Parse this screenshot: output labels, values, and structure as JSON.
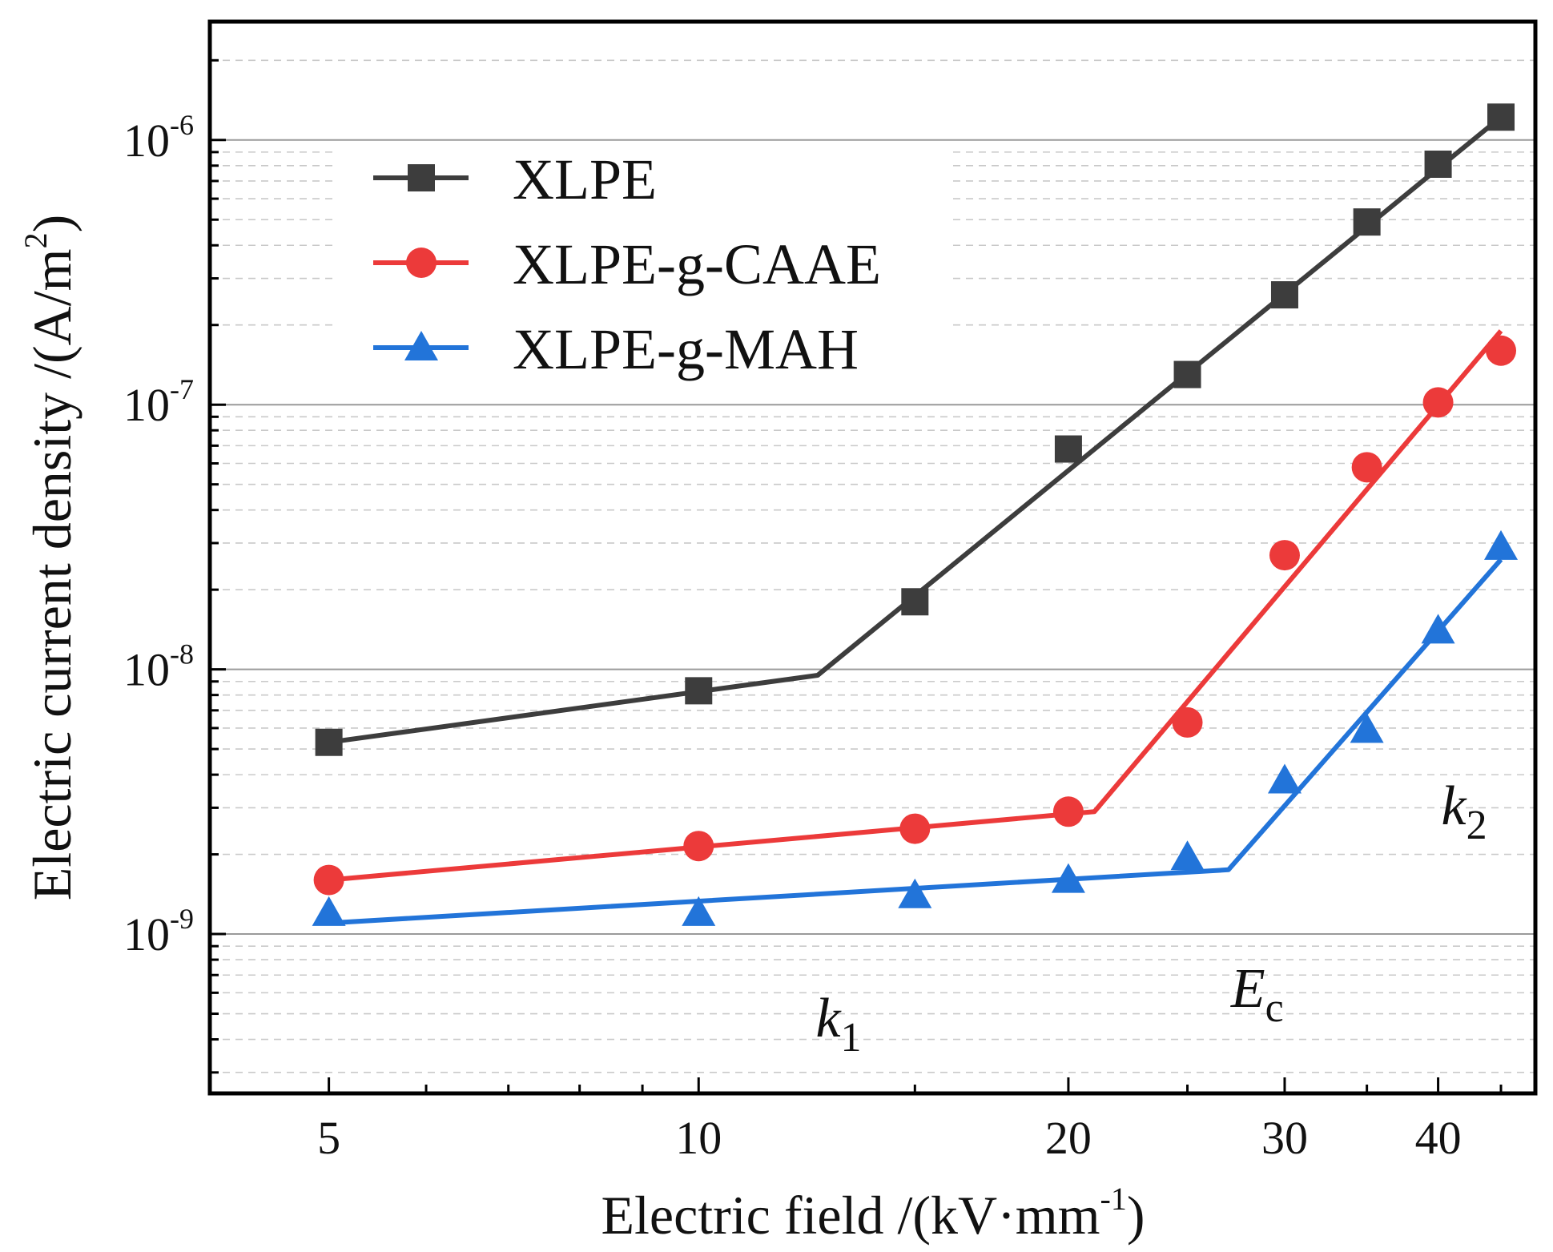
{
  "chart_data": {
    "type": "scatter",
    "x_scale": "log",
    "y_scale": "log",
    "xlabel": {
      "main": "Electric field /(kV·mm",
      "sup": "-1",
      "close": ")"
    },
    "ylabel": {
      "main": "Electric current density /(A/m",
      "sup": "2",
      "close": ")"
    },
    "xlim": [
      4.0,
      48.0
    ],
    "ylim": [
      2.5e-10,
      2.8e-06
    ],
    "x_ticks": [
      {
        "value": 5,
        "label": "5"
      },
      {
        "value": 10,
        "label": "10"
      },
      {
        "value": 20,
        "label": "20"
      },
      {
        "value": 30,
        "label": "30"
      },
      {
        "value": 40,
        "label": "40"
      }
    ],
    "x_minor_ticks": [
      6,
      7,
      8,
      9,
      15,
      25,
      35,
      45
    ],
    "y_ticks": [
      {
        "value": 1e-09,
        "base": "10",
        "exp": "-9"
      },
      {
        "value": 1e-08,
        "base": "10",
        "exp": "-8"
      },
      {
        "value": 1e-07,
        "base": "10",
        "exp": "-7"
      },
      {
        "value": 1e-06,
        "base": "10",
        "exp": "-6"
      }
    ],
    "grid": "major solid, minor dashed",
    "legend_position": "top-left",
    "series": [
      {
        "name": "XLPE",
        "color": "#3d3d3d",
        "marker": "square",
        "x": [
          5,
          10,
          15,
          20,
          25,
          30,
          35,
          40,
          45
        ],
        "y": [
          5.3e-09,
          8.3e-09,
          1.8e-08,
          6.8e-08,
          1.3e-07,
          2.6e-07,
          4.9e-07,
          8.1e-07,
          1.22e-06
        ],
        "fit": [
          {
            "x": 5,
            "y": 5.3e-09
          },
          {
            "x": 12.5,
            "y": 9.5e-09
          },
          {
            "x": 45,
            "y": 1.22e-06
          }
        ]
      },
      {
        "name": "XLPE-g-CAAE",
        "color": "#ec3a3a",
        "marker": "circle",
        "x": [
          5,
          10,
          15,
          20,
          25,
          30,
          35,
          40,
          45
        ],
        "y": [
          1.6e-09,
          2.15e-09,
          2.5e-09,
          2.9e-09,
          6.3e-09,
          2.7e-08,
          5.8e-08,
          1.02e-07,
          1.6e-07
        ],
        "fit": [
          {
            "x": 5,
            "y": 1.6e-09
          },
          {
            "x": 21,
            "y": 2.9e-09
          },
          {
            "x": 45,
            "y": 1.9e-07
          }
        ]
      },
      {
        "name": "XLPE-g-MAH",
        "color": "#2274d9",
        "marker": "triangle",
        "x": [
          5,
          10,
          15,
          20,
          25,
          30,
          35,
          40,
          45
        ],
        "y": [
          1.2e-09,
          1.2e-09,
          1.4e-09,
          1.6e-09,
          1.95e-09,
          3.8e-09,
          5.9e-09,
          1.4e-08,
          2.9e-08
        ],
        "fit": [
          {
            "x": 5,
            "y": 1.1e-09
          },
          {
            "x": 27,
            "y": 1.75e-09
          },
          {
            "x": 45,
            "y": 2.6e-08
          }
        ]
      }
    ],
    "annotations": [
      {
        "id": "k1",
        "base": "k",
        "sub": "1",
        "at_x": 13,
        "at_y": 4.1e-10
      },
      {
        "id": "Ec",
        "base": "E",
        "sub": "c",
        "at_x": 28.5,
        "at_y": 5.3e-10
      },
      {
        "id": "k2",
        "base": "k",
        "sub": "2",
        "at_x": 42,
        "at_y": 2.6e-09
      }
    ]
  }
}
